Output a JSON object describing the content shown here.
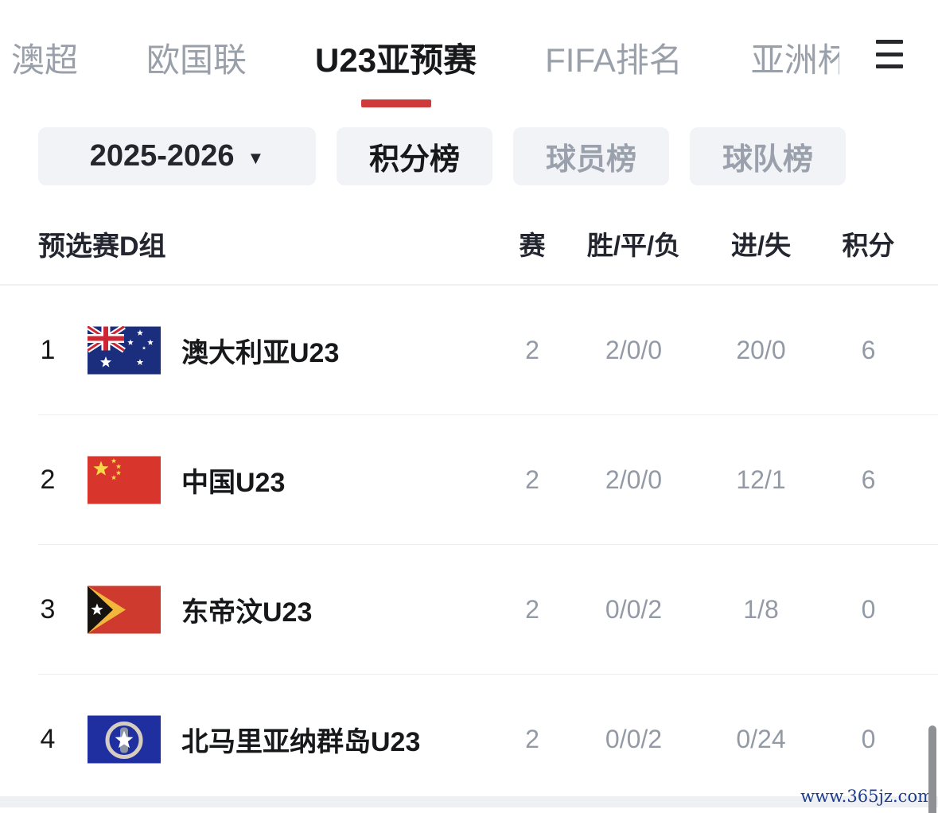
{
  "colors": {
    "accent_red": "#cf3b3b",
    "active_text": "#17181a",
    "muted_text": "#939aa5"
  },
  "tabs": {
    "items": [
      {
        "label": "澳超",
        "active": false
      },
      {
        "label": "欧国联",
        "active": false
      },
      {
        "label": "U23亚预赛",
        "active": true
      },
      {
        "label": "FIFA排名",
        "active": false
      },
      {
        "label": "亚洲杯",
        "active": false
      }
    ]
  },
  "filters": {
    "season": {
      "value": "2025-2026",
      "caret": "▼"
    },
    "views": [
      {
        "label": "积分榜",
        "selected": true
      },
      {
        "label": "球员榜",
        "selected": false
      },
      {
        "label": "球队榜",
        "selected": false
      }
    ]
  },
  "table": {
    "group_title": "预选赛D组",
    "columns": [
      "赛",
      "胜/平/负",
      "进/失",
      "积分"
    ],
    "rows": [
      {
        "rank": "1",
        "team": "澳大利亚U23",
        "flag": "australia",
        "played": "2",
        "wdl": "2/0/0",
        "gf_ga": "20/0",
        "points": "6"
      },
      {
        "rank": "2",
        "team": "中国U23",
        "flag": "china",
        "played": "2",
        "wdl": "2/0/0",
        "gf_ga": "12/1",
        "points": "6"
      },
      {
        "rank": "3",
        "team": "东帝汶U23",
        "flag": "timor-leste",
        "played": "2",
        "wdl": "0/0/2",
        "gf_ga": "1/8",
        "points": "0"
      },
      {
        "rank": "4",
        "team": "北马里亚纳群岛U23",
        "flag": "northern-mariana-islands",
        "played": "2",
        "wdl": "0/0/2",
        "gf_ga": "0/24",
        "points": "0"
      }
    ]
  },
  "watermark": "www.365jz.com"
}
